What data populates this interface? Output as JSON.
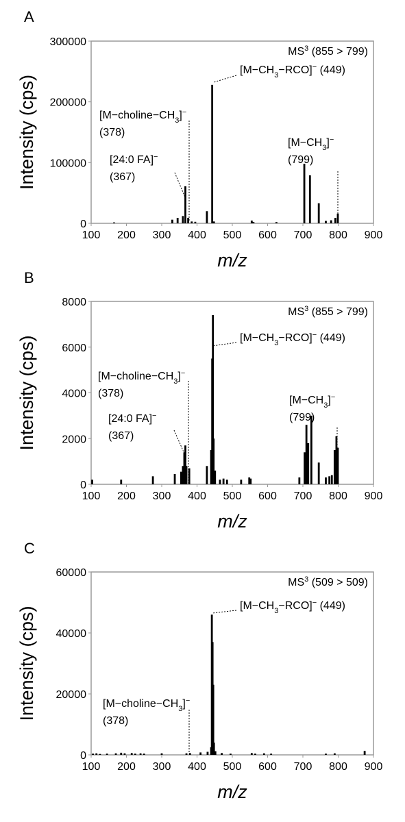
{
  "chart_data": [
    {
      "type": "bar",
      "panel_label": "A",
      "title": "MS3 (855 > 799)",
      "title_parts": [
        "MS",
        "3",
        " (855 > 799)"
      ],
      "xlabel": "m/z",
      "ylabel": "Intensity (cps)",
      "xlim": [
        100,
        900
      ],
      "ylim": [
        0,
        300000
      ],
      "xticks": [
        100,
        200,
        300,
        400,
        500,
        600,
        700,
        800,
        900
      ],
      "yticks": [
        0,
        100000,
        200000,
        300000
      ],
      "grid": false,
      "series": [
        {
          "x": [
            165,
            330,
            345,
            360,
            367,
            375,
            385,
            395,
            428,
            443,
            448,
            555,
            560,
            625,
            704,
            720,
            745,
            765,
            780,
            792,
            799
          ],
          "values": [
            1500,
            6000,
            9000,
            12000,
            61000,
            9000,
            3000,
            2500,
            20000,
            228000,
            3000,
            4500,
            2000,
            2000,
            98000,
            79000,
            33000,
            4000,
            5000,
            9000,
            16000
          ]
        }
      ],
      "annotations": [
        {
          "lines": [
            [
              "[M−CH",
              "3",
              "−RCO]",
              "−",
              " (449)"
            ]
          ],
          "x": 449
        },
        {
          "lines": [
            [
              "[M−choline−CH",
              "3",
              "]",
              "−"
            ],
            [
              "(378)"
            ]
          ],
          "x": 378
        },
        {
          "lines": [
            [
              "[24:0 FA]",
              "−"
            ],
            [
              "(367)"
            ]
          ],
          "x": 367
        },
        {
          "lines": [
            [
              "[M−CH",
              "3",
              "]",
              "−"
            ],
            [
              "(799)"
            ]
          ],
          "x": 799
        }
      ]
    },
    {
      "type": "bar",
      "panel_label": "B",
      "title": "MS3 (855 > 799)",
      "title_parts": [
        "MS",
        "3",
        " (855 > 799)"
      ],
      "xlabel": "m/z",
      "ylabel": "Intensity (cps)",
      "xlim": [
        100,
        900
      ],
      "ylim": [
        0,
        8000
      ],
      "xticks": [
        100,
        200,
        300,
        400,
        500,
        600,
        700,
        800,
        900
      ],
      "yticks": [
        0,
        2000,
        4000,
        6000,
        8000
      ],
      "grid": false,
      "series": [
        {
          "x": [
            103,
            185,
            275,
            337,
            355,
            360,
            364,
            367,
            370,
            378,
            428,
            440,
            443,
            445,
            447,
            451,
            465,
            475,
            485,
            525,
            548,
            552,
            690,
            705,
            710,
            715,
            724,
            745,
            765,
            775,
            782,
            790,
            795,
            799
          ],
          "values": [
            200,
            200,
            350,
            450,
            550,
            800,
            1400,
            1700,
            800,
            700,
            800,
            1500,
            5500,
            7400,
            2000,
            600,
            200,
            250,
            200,
            200,
            300,
            250,
            300,
            1400,
            2600,
            1800,
            3000,
            950,
            300,
            350,
            400,
            1500,
            2100,
            1600
          ]
        }
      ],
      "annotations": [
        {
          "lines": [
            [
              "[M−CH",
              "3",
              "−RCO]",
              "−",
              " (449)"
            ]
          ],
          "x": 449
        },
        {
          "lines": [
            [
              "[M−choline−CH",
              "3",
              "]",
              "−"
            ],
            [
              "(378)"
            ]
          ],
          "x": 378
        },
        {
          "lines": [
            [
              "[24:0 FA]",
              "−"
            ],
            [
              "(367)"
            ]
          ],
          "x": 367
        },
        {
          "lines": [
            [
              "[M−CH",
              "3",
              "]",
              "−"
            ],
            [
              "(799)"
            ]
          ],
          "x": 799
        }
      ]
    },
    {
      "type": "bar",
      "panel_label": "C",
      "title": "MS3 (509 > 509)",
      "title_parts": [
        "MS",
        "3",
        " (509 > 509)"
      ],
      "xlabel": "m/z",
      "ylabel": "Intensity (cps)",
      "xlim": [
        100,
        900
      ],
      "ylim": [
        0,
        60000
      ],
      "xticks": [
        100,
        200,
        300,
        400,
        500,
        600,
        700,
        800,
        900
      ],
      "yticks": [
        0,
        20000,
        40000,
        60000
      ],
      "grid": false,
      "series": [
        {
          "x": [
            105,
            115,
            125,
            145,
            170,
            185,
            195,
            215,
            225,
            240,
            250,
            300,
            370,
            380,
            410,
            430,
            440,
            442,
            444,
            446,
            448,
            452,
            470,
            495,
            555,
            565,
            590,
            610,
            765,
            790,
            875
          ],
          "values": [
            400,
            500,
            300,
            400,
            500,
            700,
            500,
            600,
            400,
            500,
            400,
            500,
            500,
            600,
            800,
            1000,
            2500,
            46000,
            37000,
            23000,
            4000,
            1200,
            600,
            400,
            600,
            400,
            500,
            400,
            400,
            500,
            1300
          ]
        }
      ],
      "annotations": [
        {
          "lines": [
            [
              "[M−CH",
              "3",
              "−RCO]",
              "−",
              " (449)"
            ]
          ],
          "x": 449
        },
        {
          "lines": [
            [
              "[M−choline−CH",
              "3",
              "]",
              "−"
            ],
            [
              "(378)"
            ]
          ],
          "x": 378
        }
      ]
    }
  ]
}
